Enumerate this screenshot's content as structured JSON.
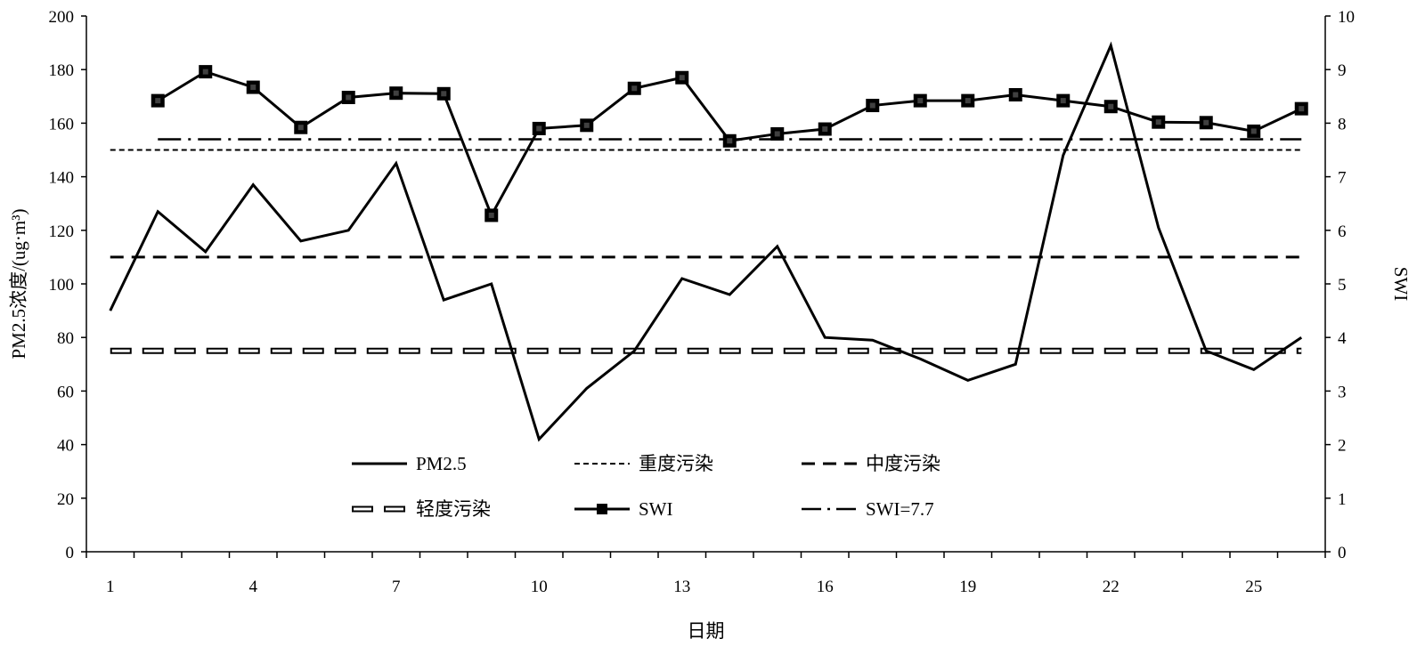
{
  "chart_data": {
    "type": "line",
    "xlabel": "日期",
    "ylabel_left": "PM2.5浓度/(ug·m³)",
    "ylabel_right": "SWI",
    "x": [
      1,
      2,
      3,
      4,
      5,
      6,
      7,
      8,
      9,
      10,
      11,
      12,
      13,
      14,
      15,
      16,
      17,
      18,
      19,
      20,
      21,
      22,
      23,
      24,
      25,
      26
    ],
    "x_tick_labels": [
      "1",
      "4",
      "7",
      "10",
      "13",
      "16",
      "19",
      "22",
      "25"
    ],
    "x_tick_values": [
      1,
      4,
      7,
      10,
      13,
      16,
      19,
      22,
      25
    ],
    "xlim": [
      0.5,
      26.5
    ],
    "ylim_left": [
      0,
      200
    ],
    "ylim_right": [
      0,
      10
    ],
    "y_left_ticks": [
      "0",
      "20",
      "40",
      "60",
      "80",
      "100",
      "120",
      "140",
      "160",
      "180",
      "200"
    ],
    "y_right_ticks": [
      "0",
      "1",
      "2",
      "3",
      "4",
      "5",
      "6",
      "7",
      "8",
      "9",
      "10"
    ],
    "grid": false,
    "legend_position": "bottom-center inside plot",
    "series": [
      {
        "name": "PM2.5",
        "axis": "left",
        "style": "solid",
        "x": [
          1,
          2,
          3,
          4,
          5,
          6,
          7,
          8,
          9,
          10,
          11,
          12,
          13,
          14,
          15,
          16,
          17,
          18,
          19,
          20,
          21,
          22,
          23,
          24,
          25,
          26
        ],
        "values": [
          90,
          127,
          112,
          137,
          116,
          120,
          145,
          94,
          100,
          42,
          61,
          75,
          102,
          96,
          114,
          80,
          79,
          72,
          64,
          70,
          148,
          189,
          121,
          75,
          68,
          80
        ]
      },
      {
        "name": "重度污染",
        "axis": "left",
        "style": "short-dash",
        "constant": 150
      },
      {
        "name": "中度污染",
        "axis": "left",
        "style": "long-dash",
        "constant": 110
      },
      {
        "name": "轻度污染",
        "axis": "left",
        "style": "hollow-dash",
        "constant": 75
      },
      {
        "name": "SWI",
        "axis": "right",
        "style": "solid-square-markers",
        "x": [
          2,
          3,
          4,
          5,
          6,
          7,
          8,
          9,
          10,
          11,
          12,
          13,
          14,
          15,
          16,
          17,
          18,
          19,
          20,
          21,
          22,
          23,
          24,
          25,
          26
        ],
        "values": [
          8.42,
          8.96,
          8.67,
          7.92,
          8.48,
          8.56,
          8.55,
          6.28,
          7.9,
          7.96,
          8.65,
          8.85,
          7.67,
          7.8,
          7.89,
          8.33,
          8.42,
          8.42,
          8.53,
          8.42,
          8.31,
          8.02,
          8.01,
          7.85,
          8.27
        ]
      },
      {
        "name": "SWI=7.7",
        "axis": "right",
        "style": "dash-dot",
        "constant": 7.7
      }
    ],
    "colors": {
      "line": "#000000",
      "background": "#ffffff"
    }
  }
}
